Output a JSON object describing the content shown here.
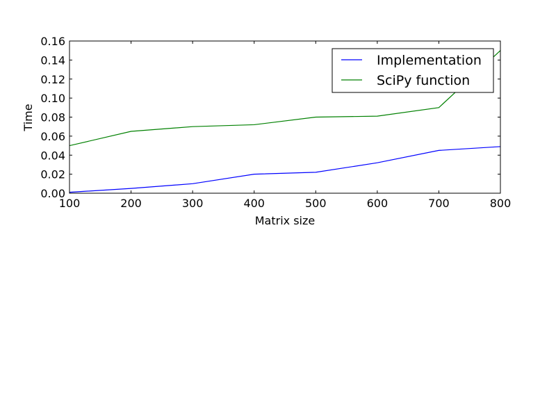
{
  "chart_data": {
    "type": "line",
    "title": "",
    "xlabel": "Matrix size",
    "ylabel": "Time",
    "xlim": [
      100,
      800
    ],
    "ylim": [
      0.0,
      0.16
    ],
    "xticks": [
      100,
      200,
      300,
      400,
      500,
      600,
      700,
      800
    ],
    "xtick_labels": [
      "100",
      "200",
      "300",
      "400",
      "500",
      "600",
      "700",
      "800"
    ],
    "yticks": [
      0.0,
      0.02,
      0.04,
      0.06,
      0.08,
      0.1,
      0.12,
      0.14,
      0.16
    ],
    "ytick_labels": [
      "0.00",
      "0.02",
      "0.04",
      "0.06",
      "0.08",
      "0.10",
      "0.12",
      "0.14",
      "0.16"
    ],
    "grid": false,
    "legend_position": "top-right",
    "x": [
      100,
      200,
      300,
      400,
      500,
      600,
      700,
      800
    ],
    "series": [
      {
        "name": "Implementation",
        "color": "#0000ff",
        "values": [
          0.001,
          0.005,
          0.01,
          0.02,
          0.022,
          0.032,
          0.045,
          0.049
        ]
      },
      {
        "name": "SciPy function",
        "color": "#008000",
        "values": [
          0.05,
          0.065,
          0.07,
          0.072,
          0.08,
          0.081,
          0.09,
          0.15
        ]
      }
    ]
  }
}
